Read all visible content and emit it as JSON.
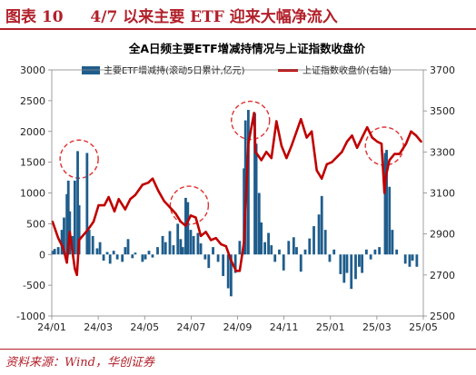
{
  "figure": {
    "label": "图表 10",
    "caption": "4/7 以来主要 ETF 迎来大幅净流入",
    "source": "资料来源：Wind，华创证券"
  },
  "colors": {
    "accent": "#b2202a",
    "bar": "#1f5d8c",
    "line": "#c00000",
    "circle": "#e03030"
  },
  "chart_data": {
    "type": "bar+line",
    "title": "全A日频主要ETF增减持情况与上证指数收盘价",
    "x_tick_labels": [
      "24/01",
      "24/03",
      "24/05",
      "24/07",
      "24/09",
      "24/11",
      "25/01",
      "25/03",
      "25/05"
    ],
    "y_left": {
      "min": -1000,
      "max": 3000,
      "ticks": [
        -1000,
        -500,
        0,
        500,
        1000,
        1500,
        2000,
        2500,
        3000
      ]
    },
    "y_right": {
      "min": 2500,
      "max": 3700,
      "ticks": [
        2500,
        2700,
        2900,
        3100,
        3300,
        3500,
        3700
      ]
    },
    "grid": false,
    "legend_position": "top",
    "series": [
      {
        "name": "主要ETF增减持(滚动5日累计,亿元)",
        "type": "bar",
        "axis": "left",
        "points": [
          [
            "2024-01-02",
            60
          ],
          [
            "2024-01-05",
            90
          ],
          [
            "2024-01-10",
            120
          ],
          [
            "2024-01-15",
            400
          ],
          [
            "2024-01-18",
            600
          ],
          [
            "2024-01-22",
            980
          ],
          [
            "2024-01-24",
            1200
          ],
          [
            "2024-01-26",
            700
          ],
          [
            "2024-01-30",
            300
          ],
          [
            "2024-02-02",
            1200
          ],
          [
            "2024-02-06",
            1680
          ],
          [
            "2024-02-08",
            800
          ],
          [
            "2024-02-19",
            1650
          ],
          [
            "2024-02-22",
            400
          ],
          [
            "2024-02-27",
            300
          ],
          [
            "2024-03-04",
            100
          ],
          [
            "2024-03-08",
            200
          ],
          [
            "2024-03-13",
            -100
          ],
          [
            "2024-03-18",
            40
          ],
          [
            "2024-03-22",
            -150
          ],
          [
            "2024-03-27",
            60
          ],
          [
            "2024-04-01",
            -80
          ],
          [
            "2024-04-08",
            -120
          ],
          [
            "2024-04-12",
            120
          ],
          [
            "2024-04-16",
            250
          ],
          [
            "2024-04-22",
            -60
          ],
          [
            "2024-04-26",
            30
          ],
          [
            "2024-05-06",
            -120
          ],
          [
            "2024-05-10",
            -80
          ],
          [
            "2024-05-15",
            60
          ],
          [
            "2024-05-20",
            -50
          ],
          [
            "2024-05-27",
            120
          ],
          [
            "2024-06-03",
            300
          ],
          [
            "2024-06-07",
            200
          ],
          [
            "2024-06-13",
            380
          ],
          [
            "2024-06-18",
            150
          ],
          [
            "2024-06-24",
            500
          ],
          [
            "2024-06-28",
            250
          ],
          [
            "2024-07-01",
            120
          ],
          [
            "2024-07-05",
            920
          ],
          [
            "2024-07-08",
            850
          ],
          [
            "2024-07-12",
            400
          ],
          [
            "2024-07-16",
            300
          ],
          [
            "2024-07-22",
            350
          ],
          [
            "2024-07-26",
            180
          ],
          [
            "2024-08-01",
            -80
          ],
          [
            "2024-08-06",
            -220
          ],
          [
            "2024-08-12",
            120
          ],
          [
            "2024-08-19",
            -120
          ],
          [
            "2024-08-26",
            -350
          ],
          [
            "2024-09-02",
            -550
          ],
          [
            "2024-09-06",
            -680
          ],
          [
            "2024-09-12",
            -300
          ],
          [
            "2024-09-18",
            220
          ],
          [
            "2024-09-24",
            1400
          ],
          [
            "2024-09-26",
            2180
          ],
          [
            "2024-09-30",
            2350
          ],
          [
            "2024-10-09",
            2300
          ],
          [
            "2024-10-11",
            1800
          ],
          [
            "2024-10-15",
            1000
          ],
          [
            "2024-10-18",
            520
          ],
          [
            "2024-10-23",
            200
          ],
          [
            "2024-10-28",
            350
          ],
          [
            "2024-11-01",
            150
          ],
          [
            "2024-11-06",
            -120
          ],
          [
            "2024-11-12",
            80
          ],
          [
            "2024-11-18",
            -260
          ],
          [
            "2024-11-25",
            220
          ],
          [
            "2024-12-02",
            280
          ],
          [
            "2024-12-06",
            120
          ],
          [
            "2024-12-12",
            -280
          ],
          [
            "2024-12-18",
            80
          ],
          [
            "2024-12-24",
            260
          ],
          [
            "2024-12-30",
            460
          ],
          [
            "2025-01-06",
            650
          ],
          [
            "2025-01-10",
            950
          ],
          [
            "2025-01-15",
            400
          ],
          [
            "2025-01-21",
            -120
          ],
          [
            "2025-01-27",
            80
          ],
          [
            "2025-02-05",
            -320
          ],
          [
            "2025-02-10",
            -460
          ],
          [
            "2025-02-14",
            -300
          ],
          [
            "2025-02-20",
            -560
          ],
          [
            "2025-02-26",
            -400
          ],
          [
            "2025-03-03",
            -200
          ],
          [
            "2025-03-07",
            -300
          ],
          [
            "2025-03-13",
            80
          ],
          [
            "2025-03-19",
            -80
          ],
          [
            "2025-03-25",
            80
          ],
          [
            "2025-03-31",
            120
          ],
          [
            "2025-04-08",
            1650
          ],
          [
            "2025-04-10",
            1700
          ],
          [
            "2025-04-14",
            1100
          ],
          [
            "2025-04-18",
            400
          ],
          [
            "2025-04-24",
            80
          ],
          [
            "2025-05-06",
            -150
          ],
          [
            "2025-05-12",
            -200
          ],
          [
            "2025-05-16",
            -100
          ],
          [
            "2025-05-22",
            -200
          ]
        ]
      },
      {
        "name": "上证指数收盘价(右轴)",
        "type": "line",
        "axis": "right",
        "points": [
          [
            "2024-01-02",
            2960
          ],
          [
            "2024-01-10",
            2880
          ],
          [
            "2024-01-17",
            2830
          ],
          [
            "2024-01-22",
            2760
          ],
          [
            "2024-01-26",
            2910
          ],
          [
            "2024-02-02",
            2730
          ],
          [
            "2024-02-05",
            2700
          ],
          [
            "2024-02-08",
            2870
          ],
          [
            "2024-02-20",
            2920
          ],
          [
            "2024-02-28",
            2960
          ],
          [
            "2024-03-06",
            3040
          ],
          [
            "2024-03-14",
            3040
          ],
          [
            "2024-03-20",
            3080
          ],
          [
            "2024-03-28",
            3010
          ],
          [
            "2024-04-03",
            3070
          ],
          [
            "2024-04-12",
            3020
          ],
          [
            "2024-04-19",
            3070
          ],
          [
            "2024-04-26",
            3090
          ],
          [
            "2024-05-06",
            3140
          ],
          [
            "2024-05-14",
            3150
          ],
          [
            "2024-05-20",
            3170
          ],
          [
            "2024-05-28",
            3110
          ],
          [
            "2024-06-05",
            3060
          ],
          [
            "2024-06-13",
            3030
          ],
          [
            "2024-06-21",
            3000
          ],
          [
            "2024-06-28",
            2960
          ],
          [
            "2024-07-05",
            2940
          ],
          [
            "2024-07-12",
            2990
          ],
          [
            "2024-07-19",
            2980
          ],
          [
            "2024-07-26",
            2890
          ],
          [
            "2024-08-02",
            2910
          ],
          [
            "2024-08-09",
            2870
          ],
          [
            "2024-08-16",
            2880
          ],
          [
            "2024-08-23",
            2850
          ],
          [
            "2024-08-30",
            2840
          ],
          [
            "2024-09-06",
            2770
          ],
          [
            "2024-09-13",
            2720
          ],
          [
            "2024-09-18",
            2720
          ],
          [
            "2024-09-24",
            2860
          ],
          [
            "2024-09-27",
            3090
          ],
          [
            "2024-09-30",
            3340
          ],
          [
            "2024-10-08",
            3490
          ],
          [
            "2024-10-10",
            3300
          ],
          [
            "2024-10-14",
            3280
          ],
          [
            "2024-10-18",
            3260
          ],
          [
            "2024-10-25",
            3300
          ],
          [
            "2024-11-01",
            3270
          ],
          [
            "2024-11-08",
            3450
          ],
          [
            "2024-11-15",
            3330
          ],
          [
            "2024-11-22",
            3270
          ],
          [
            "2024-11-29",
            3330
          ],
          [
            "2024-12-06",
            3400
          ],
          [
            "2024-12-12",
            3460
          ],
          [
            "2024-12-20",
            3370
          ],
          [
            "2024-12-27",
            3400
          ],
          [
            "2025-01-03",
            3210
          ],
          [
            "2025-01-10",
            3170
          ],
          [
            "2025-01-17",
            3240
          ],
          [
            "2025-01-24",
            3250
          ],
          [
            "2025-02-07",
            3300
          ],
          [
            "2025-02-14",
            3350
          ],
          [
            "2025-02-21",
            3380
          ],
          [
            "2025-02-28",
            3320
          ],
          [
            "2025-03-07",
            3370
          ],
          [
            "2025-03-14",
            3420
          ],
          [
            "2025-03-21",
            3370
          ],
          [
            "2025-03-28",
            3350
          ],
          [
            "2025-04-03",
            3340
          ],
          [
            "2025-04-07",
            3100
          ],
          [
            "2025-04-09",
            3180
          ],
          [
            "2025-04-14",
            3260
          ],
          [
            "2025-04-21",
            3290
          ],
          [
            "2025-04-28",
            3290
          ],
          [
            "2025-05-07",
            3340
          ],
          [
            "2025-05-14",
            3400
          ],
          [
            "2025-05-21",
            3380
          ],
          [
            "2025-05-28",
            3350
          ]
        ]
      }
    ],
    "annotations": [
      {
        "shape": "dashed-circle",
        "x": "2024-02-08",
        "y_left": 1550
      },
      {
        "shape": "dashed-circle",
        "x": "2024-07-10",
        "y_left": 800
      },
      {
        "shape": "dashed-circle",
        "x": "2024-10-03",
        "y_left": 2180
      },
      {
        "shape": "dashed-circle",
        "x": "2025-04-07",
        "y_left": 1760
      }
    ]
  }
}
